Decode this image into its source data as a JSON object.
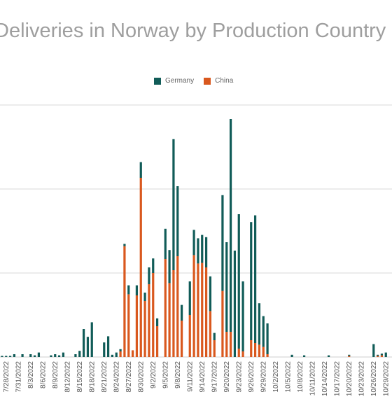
{
  "chart_data": {
    "type": "bar",
    "stacked": true,
    "title": "Deliveries in Norway by Production Country",
    "grid": true,
    "legend_position": "top",
    "series_colors": {
      "China": "#d9581e",
      "Germany": "#115c58"
    },
    "categories": [
      "7/27/2022",
      "7/28/2022",
      "7/29/2022",
      "7/30/2022",
      "7/31/2022",
      "8/1/2022",
      "8/2/2022",
      "8/3/2022",
      "8/4/2022",
      "8/5/2022",
      "8/6/2022",
      "8/7/2022",
      "8/8/2022",
      "8/9/2022",
      "8/10/2022",
      "8/11/2022",
      "8/12/2022",
      "8/13/2022",
      "8/14/2022",
      "8/15/2022",
      "8/16/2022",
      "8/17/2022",
      "8/18/2022",
      "8/19/2022",
      "8/20/2022",
      "8/21/2022",
      "8/22/2022",
      "8/23/2022",
      "8/24/2022",
      "8/25/2022",
      "8/26/2022",
      "8/27/2022",
      "8/28/2022",
      "8/29/2022",
      "8/30/2022",
      "8/31/2022",
      "9/1/2022",
      "9/2/2022",
      "9/3/2022",
      "9/4/2022",
      "9/5/2022",
      "9/6/2022",
      "9/7/2022",
      "9/8/2022",
      "9/9/2022",
      "9/10/2022",
      "9/11/2022",
      "9/12/2022",
      "9/13/2022",
      "9/14/2022",
      "9/15/2022",
      "9/16/2022",
      "9/17/2022",
      "9/18/2022",
      "9/19/2022",
      "9/20/2022",
      "9/21/2022",
      "9/22/2022",
      "9/23/2022",
      "9/24/2022",
      "9/25/2022",
      "9/26/2022",
      "9/27/2022",
      "9/28/2022",
      "9/29/2022",
      "9/30/2022",
      "10/1/2022",
      "10/2/2022",
      "10/3/2022",
      "10/4/2022",
      "10/5/2022",
      "10/6/2022",
      "10/7/2022",
      "10/8/2022",
      "10/9/2022",
      "10/10/2022",
      "10/11/2022",
      "10/12/2022",
      "10/13/2022",
      "10/14/2022",
      "10/15/2022",
      "10/16/2022",
      "10/17/2022",
      "10/18/2022",
      "10/19/2022",
      "10/20/2022",
      "10/21/2022",
      "10/22/2022",
      "10/23/2022",
      "10/24/2022",
      "10/25/2022",
      "10/26/2022",
      "10/27/2022",
      "10/28/2022",
      "10/29/2022",
      "10/30/2022"
    ],
    "tick_labels": [
      "7/28/2022",
      "7/31/2022",
      "8/3/2022",
      "8/6/2022",
      "8/9/2022",
      "8/12/2022",
      "8/15/2022",
      "8/18/2022",
      "8/21/2022",
      "8/24/2022",
      "8/27/2022",
      "8/30/2022",
      "9/2/2022",
      "9/5/2022",
      "9/8/2022",
      "9/11/2022",
      "9/14/2022",
      "9/17/2022",
      "9/20/2022",
      "9/23/2022",
      "9/26/2022",
      "9/29/2022",
      "10/2/2022",
      "10/5/2022",
      "10/8/2022",
      "10/11/2022",
      "10/14/2022",
      "10/17/2022",
      "10/20/2022",
      "10/23/2022",
      "10/26/2022",
      "10/29/2022"
    ],
    "ylim": [
      0,
      450
    ],
    "gridlines": [
      0,
      150,
      300,
      450
    ],
    "series": [
      {
        "name": "China",
        "values": [
          0,
          0,
          0,
          0,
          0,
          0,
          0,
          0,
          0,
          0,
          0,
          0,
          0,
          0,
          0,
          0,
          0,
          0,
          0,
          0,
          0,
          0,
          0,
          0,
          0,
          0,
          0,
          0,
          0,
          10,
          198,
          112,
          12,
          110,
          320,
          100,
          130,
          150,
          55,
          0,
          175,
          132,
          155,
          180,
          65,
          0,
          75,
          182,
          167,
          168,
          160,
          82,
          30,
          0,
          118,
          45,
          45,
          0,
          15,
          10,
          0,
          30,
          25,
          22,
          18,
          5,
          0,
          0,
          0,
          0,
          0,
          0,
          0,
          0,
          0,
          0,
          0,
          0,
          0,
          0,
          0,
          0,
          0,
          0,
          0,
          2,
          0,
          0,
          0,
          0,
          0,
          0,
          2,
          3,
          0,
          0
        ]
      },
      {
        "name": "Germany",
        "values": [
          2,
          2,
          2,
          5,
          0,
          5,
          0,
          5,
          3,
          8,
          0,
          0,
          3,
          5,
          3,
          8,
          0,
          0,
          5,
          11,
          50,
          36,
          62,
          0,
          0,
          26,
          37,
          4,
          8,
          4,
          4,
          16,
          0,
          18,
          28,
          15,
          30,
          26,
          14,
          0,
          54,
          59,
          234,
          125,
          28,
          0,
          60,
          45,
          45,
          50,
          54,
          62,
          13,
          0,
          171,
          160,
          380,
          190,
          240,
          125,
          0,
          211,
          228,
          74,
          55,
          55,
          0,
          0,
          0,
          0,
          0,
          4,
          0,
          0,
          3,
          0,
          0,
          0,
          0,
          0,
          3,
          0,
          0,
          0,
          0,
          2,
          0,
          0,
          0,
          0,
          0,
          23,
          2,
          3,
          8,
          0
        ]
      }
    ]
  }
}
